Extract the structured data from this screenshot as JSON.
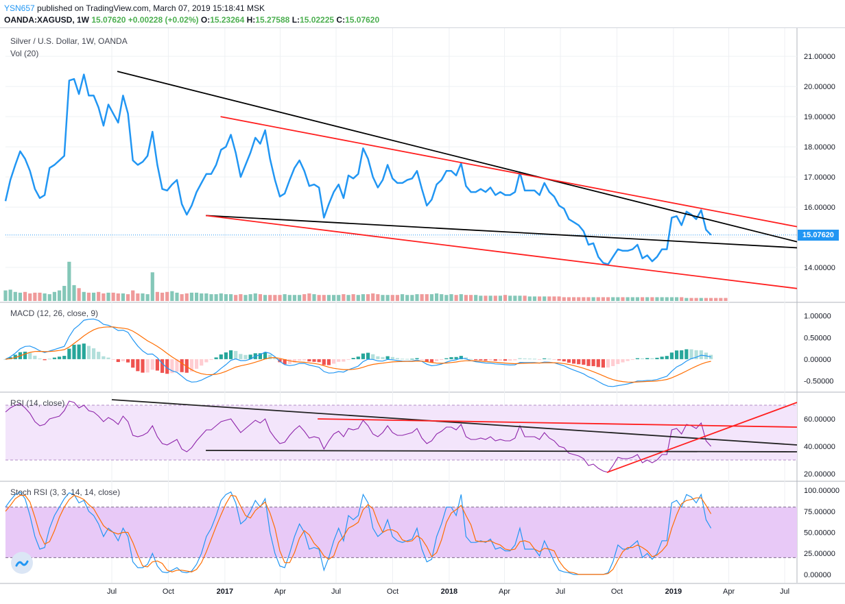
{
  "header": {
    "author": "YSN657",
    "published": "published on TradingView.com, March 07, 2019 15:18:41 MSK",
    "symbol": "OANDA:XAGUSD, 1W",
    "last": "15.07620",
    "change": "+0.00228 (+0.02%)",
    "o_label": "O:",
    "o_value": "15.23264",
    "h_label": "H:",
    "h_value": "15.27588",
    "l_label": "L:",
    "l_value": "15.02225",
    "c_label": "C:",
    "c_value": "15.07620"
  },
  "panes": {
    "price_title": "Silver / U.S. Dollar, 1W, OANDA",
    "vol_title": "Vol (20)",
    "macd_title": "MACD (12, 26, close, 9)",
    "rsi_title": "RSI (14, close)",
    "stoch_title": "Stoch RSI (3, 3, 14, 14, close)"
  },
  "price_badge": "15.07620",
  "colors": {
    "price_line": "#2196f3",
    "up_volume": "#84c7b8",
    "down_volume": "#ef9a9a",
    "trend_black": "#000000",
    "trend_red": "#ff1e1e",
    "rsi_line": "#8e24aa",
    "rsi_band": "#f3e5fb",
    "stoch_k": "#2196f3",
    "stoch_d": "#ff6d00",
    "stoch_band": "#e8c9f7",
    "macd_line": "#2196f3",
    "macd_signal": "#ff6d00",
    "macd_hist_up": "#26a69a",
    "macd_hist_down": "#ef5350"
  },
  "chart_data": {
    "type": "line",
    "x_axis": {
      "start_date": "2016-01-10",
      "end_date": "2019-07-21",
      "labels": [
        {
          "date": "2016-07-01",
          "text": "Jul",
          "bold": false
        },
        {
          "date": "2016-10-01",
          "text": "Oct",
          "bold": false
        },
        {
          "date": "2017-01-01",
          "text": "2017",
          "bold": true
        },
        {
          "date": "2017-04-01",
          "text": "Apr",
          "bold": false
        },
        {
          "date": "2017-07-01",
          "text": "Jul",
          "bold": false
        },
        {
          "date": "2017-10-01",
          "text": "Oct",
          "bold": false
        },
        {
          "date": "2018-01-01",
          "text": "2018",
          "bold": true
        },
        {
          "date": "2018-04-01",
          "text": "Apr",
          "bold": false
        },
        {
          "date": "2018-07-01",
          "text": "Jul",
          "bold": false
        },
        {
          "date": "2018-10-01",
          "text": "Oct",
          "bold": false
        },
        {
          "date": "2019-01-01",
          "text": "2019",
          "bold": true
        },
        {
          "date": "2019-04-01",
          "text": "Apr",
          "bold": false
        },
        {
          "date": "2019-07-01",
          "text": "Jul",
          "bold": false
        }
      ]
    },
    "price": {
      "start_date": "2016-01-10",
      "end_date": "2019-03-03",
      "y_range": [
        13.0,
        21.8
      ],
      "y_ticks": [
        "14.00000",
        "15.00000",
        "16.00000",
        "17.00000",
        "18.00000",
        "19.00000",
        "20.00000",
        "21.00000"
      ],
      "values": [
        16.2,
        16.9,
        17.4,
        17.85,
        17.6,
        17.2,
        16.6,
        16.3,
        16.4,
        17.3,
        17.4,
        17.55,
        17.7,
        20.2,
        20.25,
        19.75,
        20.4,
        19.7,
        19.7,
        19.3,
        18.7,
        19.4,
        19.1,
        18.8,
        19.7,
        19.1,
        17.55,
        17.4,
        17.5,
        17.7,
        18.5,
        17.4,
        16.6,
        16.55,
        16.75,
        16.9,
        16.1,
        15.75,
        16.05,
        16.5,
        16.8,
        17.1,
        17.1,
        17.4,
        17.9,
        18.0,
        18.4,
        17.8,
        17.0,
        17.4,
        17.8,
        18.3,
        18.1,
        18.55,
        17.6,
        16.9,
        16.35,
        16.45,
        16.9,
        17.3,
        17.55,
        17.2,
        16.7,
        16.75,
        16.65,
        15.65,
        16.1,
        16.5,
        16.75,
        16.3,
        17.05,
        16.95,
        17.1,
        17.95,
        17.6,
        17.0,
        16.65,
        16.9,
        17.4,
        16.95,
        16.8,
        16.8,
        16.9,
        16.95,
        17.2,
        16.6,
        16.05,
        16.25,
        16.75,
        16.9,
        17.2,
        17.2,
        17.05,
        17.45,
        16.7,
        16.5,
        16.5,
        16.6,
        16.5,
        16.65,
        16.4,
        16.5,
        16.4,
        16.4,
        16.5,
        17.15,
        16.55,
        16.55,
        16.55,
        16.4,
        16.8,
        16.5,
        16.35,
        16.05,
        15.95,
        15.6,
        15.5,
        15.4,
        15.2,
        14.75,
        14.8,
        14.35,
        14.15,
        14.1,
        14.35,
        14.6,
        14.55,
        14.55,
        14.6,
        14.75,
        14.3,
        14.4,
        14.2,
        14.35,
        14.6,
        14.6,
        15.65,
        15.7,
        15.4,
        15.85,
        15.75,
        15.6,
        15.9,
        15.25,
        15.076
      ]
    },
    "volume": {
      "pattern": "weekly volume bars, large spikes mid-2016 and Nov 2016, low in late 2018-2019",
      "relative": [
        0.7,
        0.75,
        0.6,
        0.55,
        0.6,
        0.5,
        0.55,
        0.55,
        0.5,
        0.45,
        0.6,
        0.7,
        1.0,
        2.6,
        1.05,
        0.85,
        0.6,
        0.55,
        0.55,
        0.6,
        0.5,
        0.55,
        0.55,
        0.5,
        0.5,
        0.45,
        0.7,
        0.5,
        0.5,
        0.45,
        1.9,
        0.6,
        0.55,
        0.6,
        0.65,
        0.55,
        0.45,
        0.5,
        0.55,
        0.55,
        0.5,
        0.5,
        0.45,
        0.45,
        0.5,
        0.45,
        0.45,
        0.4,
        0.45,
        0.4,
        0.45,
        0.5,
        0.45,
        0.4,
        0.4,
        0.4,
        0.4,
        0.45,
        0.4,
        0.4,
        0.4,
        0.45,
        0.5,
        0.45,
        0.4,
        0.4,
        0.4,
        0.4,
        0.4,
        0.45,
        0.4,
        0.45,
        0.4,
        0.45,
        0.45,
        0.5,
        0.45,
        0.4,
        0.4,
        0.4,
        0.4,
        0.45,
        0.4,
        0.4,
        0.45,
        0.45,
        0.45,
        0.45,
        0.5,
        0.45,
        0.4,
        0.45,
        0.4,
        0.45,
        0.4,
        0.4,
        0.4,
        0.35,
        0.35,
        0.35,
        0.35,
        0.35,
        0.4,
        0.35,
        0.35,
        0.35,
        0.35,
        0.3,
        0.3,
        0.3,
        0.3,
        0.3,
        0.3,
        0.3,
        0.25,
        0.25,
        0.25,
        0.25,
        0.25,
        0.25,
        0.25,
        0.25,
        0.25,
        0.25,
        0.25,
        0.25,
        0.25,
        0.25,
        0.25,
        0.25,
        0.25,
        0.25,
        0.25,
        0.25,
        0.25,
        0.25,
        0.25,
        0.25,
        0.25,
        0.2,
        0.2,
        0.2,
        0.2,
        0.2,
        0.2,
        0.2,
        0.2,
        0.2
      ]
    },
    "macd": {
      "y_range": [
        -0.65,
        1.2
      ],
      "y_ticks": [
        "-0.50000",
        "0.00000",
        "0.50000",
        "1.00000"
      ],
      "note": "MACD line, signal line and histogram approximated from the price series"
    },
    "rsi": {
      "y_range": [
        18,
        76
      ],
      "y_ticks": [
        "20.00000",
        "40.00000",
        "60.00000"
      ],
      "band": [
        30,
        70
      ],
      "values": [
        65,
        68,
        70,
        71,
        68,
        64,
        58,
        55,
        56,
        60,
        61,
        62,
        66,
        73,
        72,
        68,
        70,
        66,
        65,
        62,
        58,
        61,
        59,
        56,
        62,
        58,
        48,
        47,
        48,
        50,
        55,
        47,
        42,
        41,
        43,
        45,
        38,
        36,
        39,
        44,
        48,
        52,
        52,
        55,
        58,
        59,
        60,
        55,
        50,
        53,
        56,
        59,
        57,
        60,
        51,
        46,
        42,
        43,
        48,
        52,
        55,
        51,
        46,
        47,
        46,
        38,
        44,
        49,
        51,
        47,
        53,
        52,
        53,
        59,
        55,
        49,
        47,
        50,
        55,
        50,
        48,
        48,
        49,
        50,
        53,
        46,
        42,
        44,
        49,
        51,
        54,
        54,
        52,
        56,
        47,
        45,
        45,
        46,
        45,
        47,
        44,
        45,
        44,
        44,
        46,
        55,
        47,
        47,
        47,
        45,
        50,
        46,
        44,
        40,
        39,
        35,
        34,
        33,
        31,
        26,
        27,
        24,
        22,
        21,
        26,
        32,
        31,
        31,
        32,
        34,
        28,
        30,
        28,
        30,
        34,
        34,
        52,
        53,
        49,
        56,
        55,
        53,
        57,
        44,
        40
      ]
    },
    "stoch_rsi": {
      "y_range": [
        -5,
        105
      ],
      "y_ticks": [
        "0.00000",
        "25.00000",
        "50.00000",
        "75.00000",
        "100.00000"
      ],
      "band": [
        20,
        80
      ],
      "k": [
        80,
        88,
        95,
        98,
        90,
        70,
        45,
        30,
        32,
        55,
        70,
        80,
        90,
        97,
        95,
        85,
        88,
        75,
        70,
        60,
        45,
        55,
        50,
        40,
        55,
        45,
        15,
        8,
        8,
        12,
        25,
        10,
        3,
        2,
        5,
        8,
        3,
        2,
        4,
        12,
        25,
        45,
        55,
        70,
        88,
        95,
        98,
        85,
        60,
        65,
        75,
        88,
        80,
        90,
        50,
        25,
        10,
        8,
        25,
        45,
        60,
        50,
        30,
        32,
        30,
        5,
        20,
        40,
        55,
        40,
        70,
        65,
        70,
        95,
        85,
        55,
        45,
        50,
        65,
        45,
        40,
        38,
        40,
        42,
        55,
        30,
        15,
        18,
        45,
        60,
        80,
        80,
        70,
        95,
        45,
        38,
        38,
        40,
        38,
        42,
        30,
        32,
        28,
        28,
        35,
        55,
        30,
        30,
        30,
        22,
        40,
        28,
        15,
        5,
        3,
        2,
        0,
        0,
        0,
        0,
        0,
        0,
        0,
        2,
        15,
        35,
        30,
        30,
        35,
        40,
        20,
        25,
        18,
        25,
        40,
        40,
        85,
        88,
        80,
        95,
        92,
        85,
        95,
        65,
        55
      ],
      "d": [
        75,
        82,
        90,
        94,
        94,
        86,
        68,
        48,
        36,
        39,
        52,
        68,
        80,
        89,
        94,
        92,
        89,
        83,
        78,
        68,
        58,
        53,
        50,
        48,
        50,
        50,
        38,
        23,
        10,
        9,
        15,
        16,
        13,
        5,
        3,
        5,
        5,
        4,
        3,
        6,
        14,
        27,
        42,
        57,
        71,
        84,
        94,
        93,
        81,
        70,
        67,
        76,
        81,
        86,
        73,
        55,
        28,
        14,
        14,
        26,
        43,
        52,
        47,
        37,
        31,
        22,
        18,
        22,
        38,
        45,
        55,
        58,
        62,
        77,
        83,
        78,
        62,
        50,
        53,
        53,
        50,
        41,
        39,
        40,
        46,
        42,
        33,
        21,
        26,
        41,
        62,
        73,
        77,
        82,
        70,
        59,
        40,
        39,
        39,
        40,
        37,
        35,
        30,
        29,
        30,
        39,
        40,
        38,
        30,
        27,
        31,
        30,
        28,
        16,
        8,
        3,
        2,
        0,
        0,
        0,
        0,
        0,
        0,
        1,
        6,
        17,
        27,
        32,
        32,
        35,
        32,
        28,
        21,
        23,
        28,
        35,
        55,
        71,
        84,
        88,
        89,
        91,
        91,
        82,
        72
      ]
    },
    "trendlines": {
      "price": [
        {
          "color": "black",
          "from": [
            "2016-07-10",
            20.5
          ],
          "to": [
            "2019-07-21",
            14.85
          ]
        },
        {
          "color": "black",
          "from": [
            "2016-12-01",
            15.72
          ],
          "to": [
            "2019-07-21",
            14.65
          ]
        },
        {
          "color": "red",
          "from": [
            "2016-12-25",
            19.0
          ],
          "to": [
            "2019-07-21",
            15.35
          ]
        },
        {
          "color": "red",
          "from": [
            "2016-12-01",
            15.72
          ],
          "to": [
            "2019-07-21",
            13.3
          ]
        }
      ],
      "rsi": [
        {
          "color": "black",
          "from": [
            "2016-07-01",
            74
          ],
          "to": [
            "2019-07-21",
            41
          ]
        },
        {
          "color": "black",
          "from": [
            "2016-12-01",
            37
          ],
          "to": [
            "2019-07-21",
            36
          ]
        },
        {
          "color": "red",
          "from": [
            "2017-06-01",
            60
          ],
          "to": [
            "2019-07-21",
            54
          ]
        },
        {
          "color": "red",
          "from": [
            "2018-09-15",
            21
          ],
          "to": [
            "2019-07-21",
            72
          ]
        }
      ]
    }
  }
}
